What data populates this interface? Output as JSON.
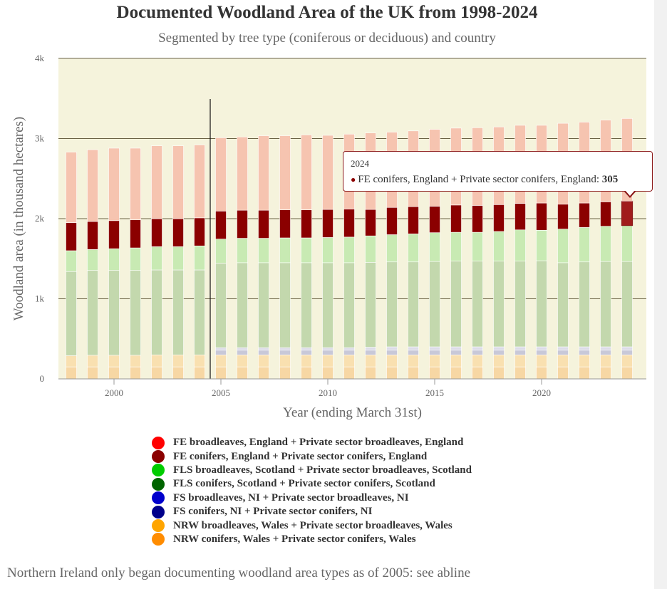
{
  "title": "Documented Woodland Area of the UK from 1998-2024",
  "subtitle": "Segmented by tree type (coniferous or deciduous) and country",
  "caption": "Northern Ireland only began documenting woodland area types as of 2005: see abline",
  "tooltip": {
    "year": "2024",
    "series_name": "FE conifers, England + Private sector conifers, England",
    "separator": ": ",
    "value": "305"
  },
  "legend": [
    {
      "label": "FE broadleaves, England + Private sector broadleaves, England",
      "color": "#ff0000"
    },
    {
      "label": "FE conifers, England + Private sector conifers, England",
      "color": "#8b0000"
    },
    {
      "label": "FLS broadleaves, Scotland + Private sector broadleaves, Scotland",
      "color": "#00cc00"
    },
    {
      "label": "FLS conifers, Scotland + Private sector conifers, Scotland",
      "color": "#006400"
    },
    {
      "label": "FS broadleaves, NI + Private sector broadleaves, NI",
      "color": "#0000cc"
    },
    {
      "label": "FS conifers, NI + Private sector conifers, NI",
      "color": "#00008b"
    },
    {
      "label": "NRW broadleaves, Wales + Private sector broadleaves, Wales",
      "color": "#ffa500"
    },
    {
      "label": "NRW conifers, Wales + Private sector conifers, Wales",
      "color": "#ff8c00"
    }
  ],
  "chart_data": {
    "type": "bar",
    "stacked": true,
    "title": "Documented Woodland Area of the UK from 1998-2024",
    "subtitle": "Segmented by tree type (coniferous or deciduous) and country",
    "xlabel": "Year (ending March 31st)",
    "ylabel": "Woodland area (in thousand hectares)",
    "ylim": [
      0,
      4000
    ],
    "yticks": [
      0,
      1000,
      2000,
      3000,
      4000
    ],
    "ytick_labels": [
      "0",
      "1k",
      "2k",
      "3k",
      "4k"
    ],
    "xticks": [
      2000,
      2005,
      2010,
      2015,
      2020
    ],
    "grid": true,
    "abline_year": 2004.5,
    "highlighted": {
      "year": 2024,
      "series": "FE conifers, England + Private sector conifers, England"
    },
    "x": [
      1998,
      1999,
      2000,
      2001,
      2002,
      2003,
      2004,
      2005,
      2006,
      2007,
      2008,
      2009,
      2010,
      2011,
      2012,
      2013,
      2014,
      2015,
      2016,
      2017,
      2018,
      2019,
      2020,
      2021,
      2022,
      2023,
      2024
    ],
    "series": [
      {
        "name": "NRW conifers, Wales + Private sector conifers, Wales",
        "color": "#f7d7a4",
        "values": [
          150,
          150,
          150,
          150,
          150,
          150,
          150,
          150,
          150,
          150,
          150,
          150,
          150,
          150,
          150,
          150,
          150,
          150,
          150,
          150,
          150,
          150,
          150,
          150,
          150,
          150,
          150
        ]
      },
      {
        "name": "NRW broadleaves, Wales + Private sector broadleaves, Wales",
        "color": "#f9e0b0",
        "values": [
          140,
          145,
          145,
          145,
          150,
          150,
          150,
          150,
          150,
          150,
          150,
          150,
          150,
          150,
          150,
          150,
          150,
          150,
          150,
          150,
          150,
          150,
          150,
          150,
          150,
          150,
          150
        ]
      },
      {
        "name": "FS conifers, NI + Private sector conifers, NI",
        "color": "#c8c8d8",
        "values": [
          0,
          0,
          0,
          0,
          0,
          0,
          0,
          60,
          60,
          60,
          60,
          60,
          60,
          60,
          60,
          60,
          60,
          60,
          60,
          60,
          60,
          60,
          60,
          60,
          60,
          60,
          60
        ]
      },
      {
        "name": "FS broadleaves, NI + Private sector broadleaves, NI",
        "color": "#dcdce8",
        "values": [
          0,
          0,
          0,
          0,
          0,
          0,
          0,
          30,
          30,
          30,
          30,
          30,
          30,
          30,
          35,
          40,
          40,
          40,
          40,
          40,
          40,
          40,
          40,
          40,
          40,
          40,
          40
        ]
      },
      {
        "name": "FLS conifers, Scotland + Private sector conifers, Scotland",
        "color": "#c3d8ad",
        "values": [
          1050,
          1060,
          1060,
          1060,
          1060,
          1060,
          1060,
          1055,
          1060,
          1060,
          1060,
          1060,
          1060,
          1060,
          1060,
          1060,
          1060,
          1065,
          1070,
          1070,
          1070,
          1070,
          1075,
          1050,
          1060,
          1065,
          1065
        ]
      },
      {
        "name": "FLS broadleaves, Scotland + Private sector broadleaves, Scotland",
        "color": "#c8eab3",
        "values": [
          260,
          260,
          270,
          280,
          290,
          290,
          300,
          300,
          305,
          305,
          310,
          310,
          315,
          320,
          330,
          340,
          350,
          360,
          360,
          360,
          370,
          390,
          380,
          420,
          430,
          440,
          450
        ]
      },
      {
        "name": "FE conifers, England + Private sector conifers, England",
        "color": "#8b0000",
        "values": [
          350,
          350,
          350,
          350,
          350,
          350,
          350,
          350,
          350,
          350,
          350,
          350,
          350,
          350,
          330,
          340,
          340,
          330,
          340,
          335,
          335,
          330,
          340,
          310,
          305,
          305,
          305
        ]
      },
      {
        "name": "FE broadleaves, England + Private sector broadleaves, England",
        "color": "#f6c4b0",
        "values": [
          880,
          895,
          905,
          895,
          910,
          910,
          910,
          915,
          915,
          930,
          925,
          935,
          925,
          935,
          955,
          940,
          945,
          960,
          960,
          970,
          970,
          975,
          970,
          1010,
          1010,
          1020,
          1030
        ]
      }
    ]
  }
}
